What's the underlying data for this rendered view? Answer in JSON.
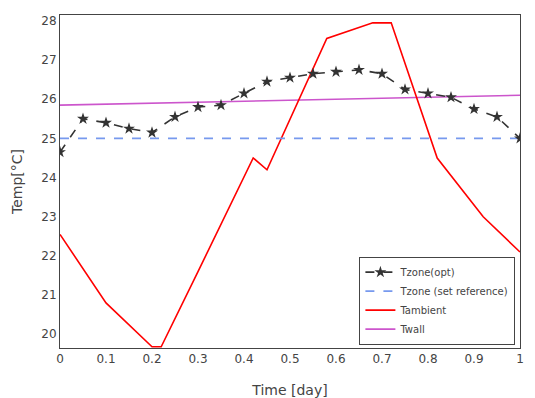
{
  "chart_data": {
    "type": "line",
    "xlabel": "Time [day]",
    "ylabel": "Temp[°C]",
    "xlim": [
      0,
      1
    ],
    "ylim": [
      19.65,
      28.15
    ],
    "xticks": [
      0,
      0.1,
      0.2,
      0.3,
      0.4,
      0.5,
      0.6,
      0.7,
      0.8,
      0.9,
      1.0
    ],
    "yticks": [
      20,
      21,
      22,
      23,
      24,
      25,
      26,
      27,
      28
    ],
    "grid": false,
    "legend": "lower right",
    "series": [
      {
        "name": "Tzone(opt)",
        "color": "#333333",
        "line_style": "dashed",
        "marker": "star",
        "x": [
          0,
          0.05,
          0.1,
          0.15,
          0.2,
          0.25,
          0.3,
          0.35,
          0.4,
          0.45,
          0.5,
          0.55,
          0.6,
          0.65,
          0.7,
          0.75,
          0.8,
          0.85,
          0.9,
          0.95,
          1.0
        ],
        "values": [
          24.65,
          25.5,
          25.4,
          25.25,
          25.15,
          25.55,
          25.8,
          25.85,
          26.15,
          26.45,
          26.55,
          26.65,
          26.7,
          26.75,
          26.65,
          26.25,
          26.15,
          26.05,
          25.75,
          25.55,
          25.0
        ]
      },
      {
        "name": "Tzone (set reference)",
        "color": "#7799ee",
        "line_style": "dashed",
        "x": [
          0,
          1
        ],
        "values": [
          25.0,
          25.0
        ]
      },
      {
        "name": "Tambient",
        "color": "#ff0000",
        "line_style": "solid",
        "x": [
          0,
          0.1,
          0.2,
          0.22,
          0.3,
          0.42,
          0.45,
          0.58,
          0.68,
          0.72,
          0.82,
          0.92,
          1.0
        ],
        "values": [
          22.55,
          20.8,
          19.68,
          19.68,
          21.6,
          24.5,
          24.2,
          27.55,
          27.95,
          27.95,
          24.5,
          23.0,
          22.1
        ]
      },
      {
        "name": "Twall",
        "color": "#cc55cc",
        "line_style": "solid",
        "x": [
          0,
          1.0
        ],
        "values": [
          25.85,
          26.1
        ]
      }
    ]
  }
}
